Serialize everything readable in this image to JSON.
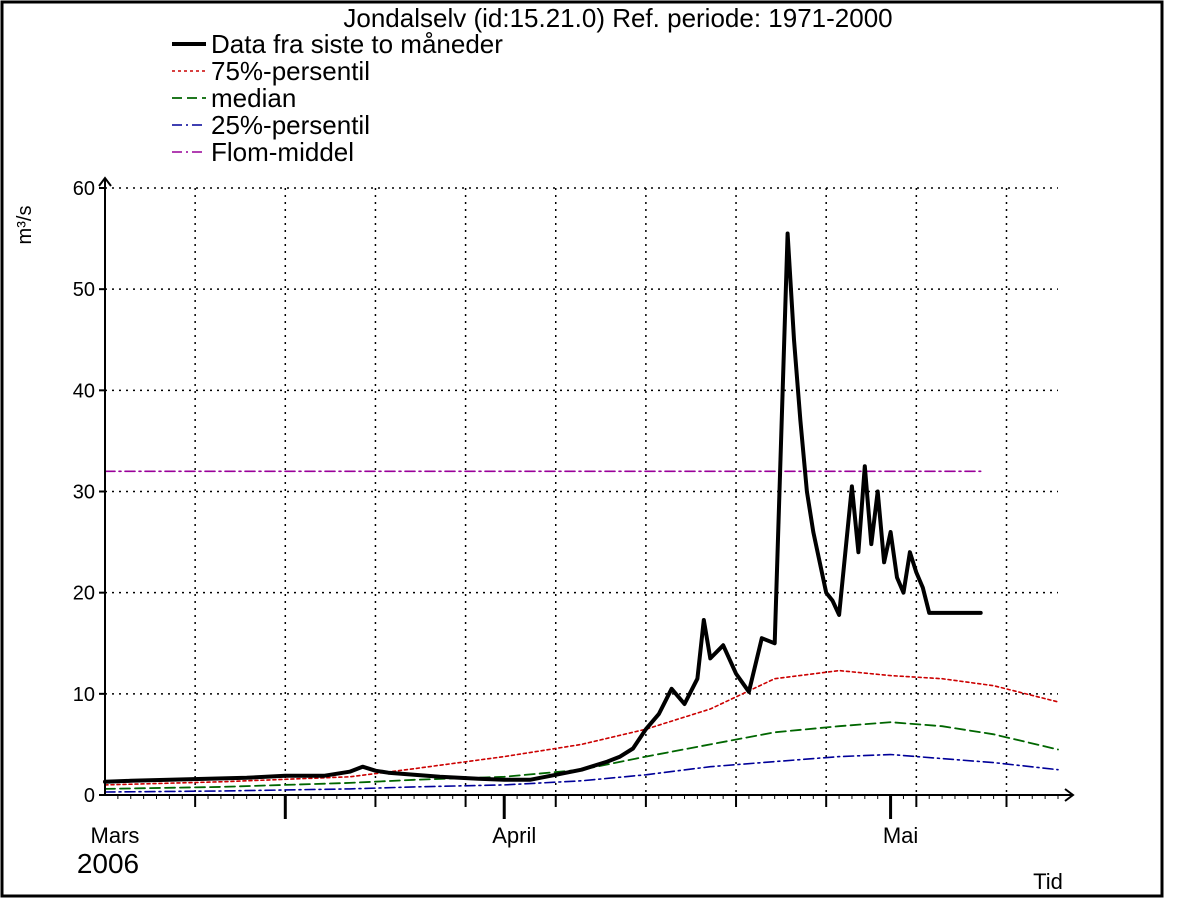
{
  "chart_data": {
    "type": "line",
    "title": "Jondalselv (id:15.21.0) Ref. periode: 1971-2000",
    "ylabel": "m³/s",
    "xlabel": "Tid",
    "year_label": "2006",
    "ylim": [
      0,
      60
    ],
    "y_ticks": [
      0,
      10,
      20,
      30,
      40,
      50,
      60
    ],
    "x_range": [
      "2006-03-01",
      "2006-05-14"
    ],
    "month_labels": [
      {
        "label": "Mars",
        "date": "2006-03-01"
      },
      {
        "label": "April",
        "date": "2006-04-01"
      },
      {
        "label": "Mai",
        "date": "2006-05-01"
      }
    ],
    "grid": true,
    "legend_position": "top-left",
    "series": [
      {
        "name": "Data fra siste to måneder",
        "style": "solid-thick",
        "color": "#000000",
        "x": [
          "2006-03-01",
          "2006-03-03",
          "2006-03-06",
          "2006-03-09",
          "2006-03-12",
          "2006-03-15",
          "2006-03-18",
          "2006-03-20",
          "2006-03-21",
          "2006-03-22",
          "2006-03-23",
          "2006-03-24",
          "2006-03-27",
          "2006-03-30",
          "2006-04-01",
          "2006-04-03",
          "2006-04-05",
          "2006-04-07",
          "2006-04-09",
          "2006-04-10",
          "2006-04-11",
          "2006-04-12",
          "2006-04-13",
          "2006-04-14",
          "2006-04-15",
          "2006-04-16",
          "2006-04-16T12",
          "2006-04-17",
          "2006-04-18",
          "2006-04-19",
          "2006-04-20",
          "2006-04-21",
          "2006-04-22",
          "2006-04-23",
          "2006-04-23T12",
          "2006-04-24",
          "2006-04-24T12",
          "2006-04-25",
          "2006-04-26",
          "2006-04-26T12",
          "2006-04-27",
          "2006-04-28",
          "2006-04-28T12",
          "2006-04-29",
          "2006-04-29T12",
          "2006-04-30",
          "2006-04-30T12",
          "2006-05-01",
          "2006-05-01T12",
          "2006-05-02",
          "2006-05-02T12",
          "2006-05-03",
          "2006-05-03T12",
          "2006-05-04",
          "2006-05-04T12",
          "2006-05-05",
          "2006-05-05T12",
          "2006-05-06",
          "2006-05-07",
          "2006-05-08"
        ],
        "values": [
          1.3,
          1.4,
          1.5,
          1.6,
          1.7,
          1.9,
          1.9,
          2.3,
          2.8,
          2.4,
          2.2,
          2.1,
          1.8,
          1.6,
          1.5,
          1.5,
          2.0,
          2.5,
          3.3,
          3.8,
          4.6,
          6.5,
          8.0,
          10.5,
          9.0,
          11.5,
          17.3,
          13.5,
          14.8,
          12.0,
          10.2,
          15.5,
          15.0,
          55.5,
          45.0,
          37.0,
          30.0,
          26.0,
          20.0,
          19.2,
          17.8,
          30.5,
          24.0,
          32.5,
          24.8,
          30.0,
          23.0,
          26.0,
          21.5,
          20.0,
          24.0,
          22.0,
          20.5,
          18.0,
          18.0,
          18.0,
          18.0,
          18.0,
          18.0,
          18.0
        ]
      },
      {
        "name": "75%-persentil",
        "style": "dotted",
        "color": "#cc0000",
        "x": [
          "2006-03-01",
          "2006-03-10",
          "2006-03-20",
          "2006-03-25",
          "2006-04-01",
          "2006-04-07",
          "2006-04-12",
          "2006-04-17",
          "2006-04-22",
          "2006-04-27",
          "2006-05-01",
          "2006-05-05",
          "2006-05-09",
          "2006-05-14"
        ],
        "values": [
          1.0,
          1.3,
          1.8,
          2.6,
          3.8,
          5.0,
          6.5,
          8.5,
          11.5,
          12.3,
          11.8,
          11.5,
          10.8,
          9.2
        ]
      },
      {
        "name": "median",
        "style": "dashed",
        "color": "#006600",
        "x": [
          "2006-03-01",
          "2006-03-10",
          "2006-03-20",
          "2006-03-25",
          "2006-04-01",
          "2006-04-07",
          "2006-04-12",
          "2006-04-17",
          "2006-04-22",
          "2006-04-27",
          "2006-05-01",
          "2006-05-05",
          "2006-05-09",
          "2006-05-14"
        ],
        "values": [
          0.6,
          0.8,
          1.2,
          1.5,
          1.8,
          2.5,
          3.8,
          5.0,
          6.2,
          6.8,
          7.2,
          6.8,
          6.0,
          4.5
        ]
      },
      {
        "name": "25%-persentil",
        "style": "dash-dot",
        "color": "#000099",
        "x": [
          "2006-03-01",
          "2006-03-10",
          "2006-03-20",
          "2006-03-25",
          "2006-04-01",
          "2006-04-07",
          "2006-04-12",
          "2006-04-17",
          "2006-04-22",
          "2006-04-27",
          "2006-05-01",
          "2006-05-05",
          "2006-05-09",
          "2006-05-14"
        ],
        "values": [
          0.3,
          0.4,
          0.6,
          0.8,
          1.0,
          1.4,
          2.0,
          2.8,
          3.3,
          3.8,
          4.0,
          3.6,
          3.2,
          2.5
        ]
      },
      {
        "name": "Flom-middel",
        "style": "dash-dot",
        "color": "#990099",
        "x": [
          "2006-03-01",
          "2006-05-08"
        ],
        "values": [
          32,
          32
        ]
      }
    ]
  }
}
